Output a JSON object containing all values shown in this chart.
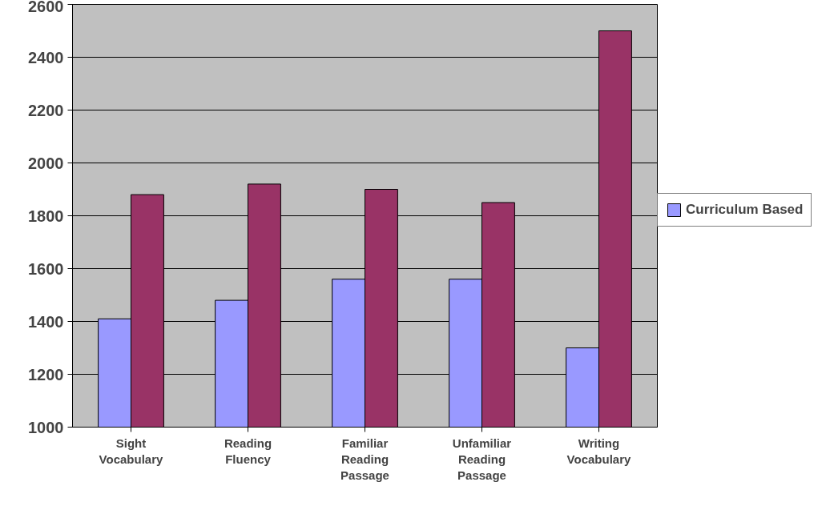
{
  "chart_data": {
    "type": "bar",
    "categories": [
      "Sight Vocabulary",
      "Reading Fluency",
      "Familiar Reading Passage",
      "Unfamiliar Reading Passage",
      "Writing Vocabulary"
    ],
    "series": [
      {
        "name": "Curriculum Based",
        "color": "#9999ff",
        "values": [
          1410,
          1480,
          1560,
          1560,
          1300
        ]
      },
      {
        "color": "#993366",
        "values": [
          1880,
          1920,
          1900,
          1850,
          2500
        ]
      }
    ],
    "ylim": [
      1000,
      2600
    ],
    "yticks": [
      1000,
      1200,
      1400,
      1600,
      1800,
      2000,
      2200,
      2400,
      2600
    ],
    "grid": "y",
    "legend": "right"
  }
}
